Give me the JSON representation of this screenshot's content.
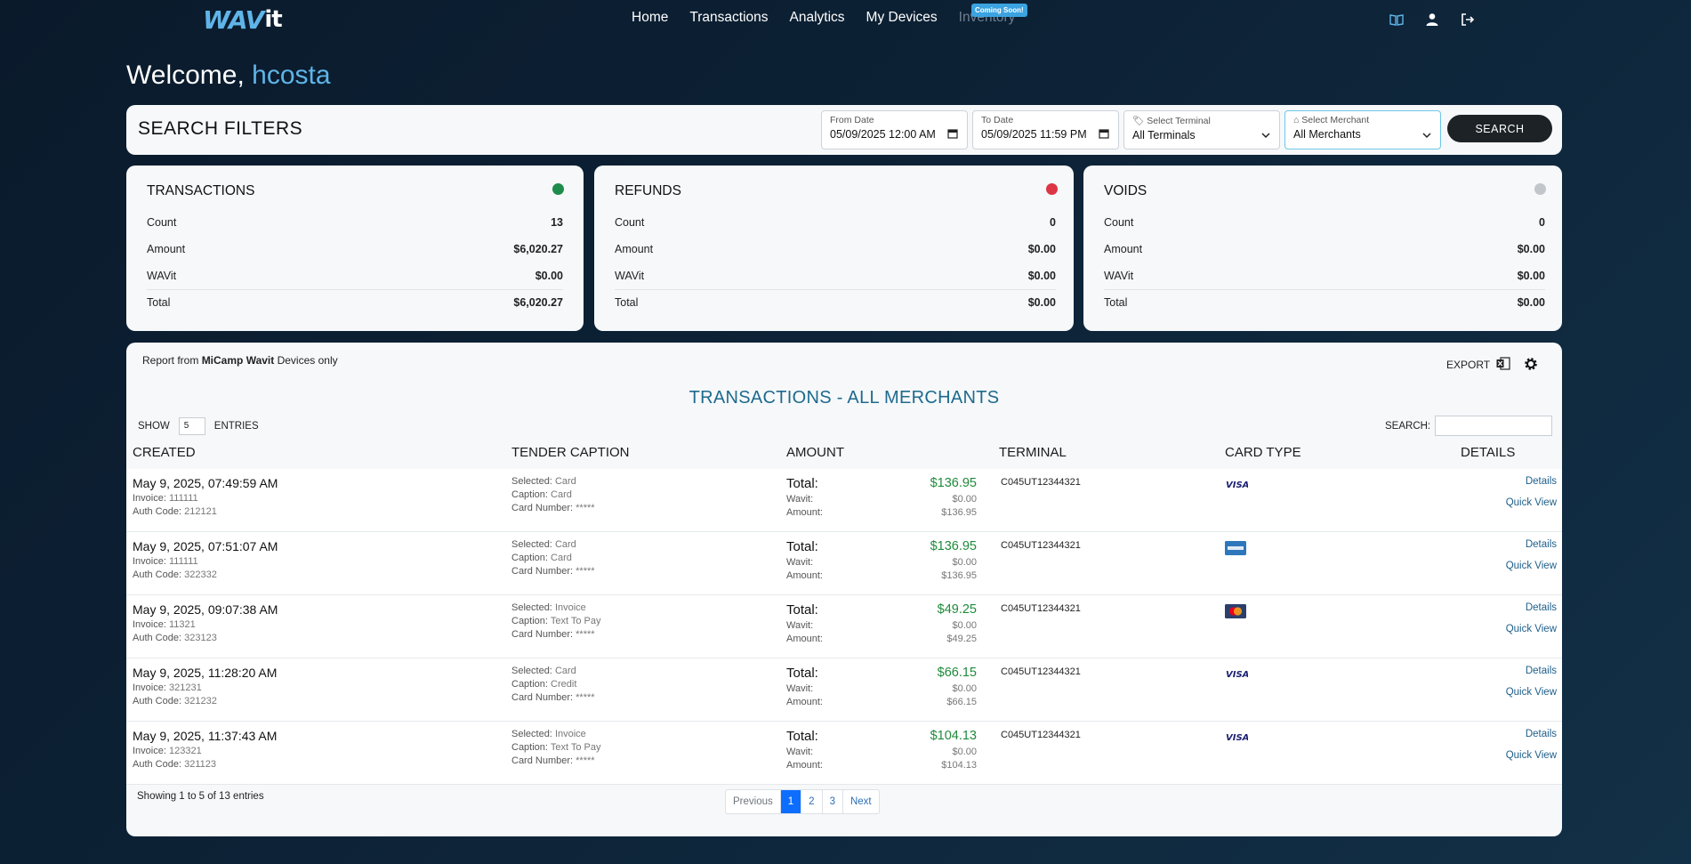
{
  "brand": {
    "logo_main": "WAV",
    "logo_tail": "it"
  },
  "nav": {
    "items": [
      "Home",
      "Transactions",
      "Analytics",
      "My Devices"
    ],
    "inventory": "Inventory",
    "coming_soon": "Coming Soon!"
  },
  "welcome": {
    "prefix": "Welcome,",
    "user": "hcosta"
  },
  "filters": {
    "title": "SEARCH FILTERS",
    "from_label": "From Date",
    "from_value": "05/09/2025 12:00 AM",
    "to_label": "To Date",
    "to_value": "05/09/2025 11:59 PM",
    "terminal_label": "Select Terminal",
    "terminal_value": "All Terminals",
    "merchant_label": "Select Merchant",
    "merchant_value": "All Merchants",
    "search_button": "SEARCH"
  },
  "summary": {
    "row_labels": {
      "count": "Count",
      "amount": "Amount",
      "wavit": "WAVit",
      "total": "Total"
    },
    "cards": [
      {
        "title": "TRANSACTIONS",
        "status_color": "#1e8c4a",
        "count": "13",
        "amount": "$6,020.27",
        "wavit": "$0.00",
        "total": "$6,020.27"
      },
      {
        "title": "REFUNDS",
        "status_color": "#dc3545",
        "count": "0",
        "amount": "$0.00",
        "wavit": "$0.00",
        "total": "$0.00"
      },
      {
        "title": "VOIDS",
        "status_color": "#c2c6ca",
        "count": "0",
        "amount": "$0.00",
        "wavit": "$0.00",
        "total": "$0.00"
      }
    ]
  },
  "report": {
    "note_prefix": "Report from ",
    "note_bold": "MiCamp Wavit",
    "note_suffix": " Devices only",
    "export_label": "EXPORT",
    "title": "TRANSACTIONS - ALL MERCHANTS",
    "show_label": "SHOW",
    "entries_value": "5",
    "entries_label": "ENTRIES",
    "search_label": "SEARCH:"
  },
  "table": {
    "headers": [
      "CREATED",
      "TENDER CAPTION",
      "AMOUNT",
      "TERMINAL",
      "CARD TYPE",
      "DETAILS"
    ],
    "labels": {
      "invoice": "Invoice:",
      "auth": "Auth Code:",
      "selected": "Selected:",
      "caption": "Caption:",
      "card_number": "Card Number:",
      "total": "Total:",
      "wavit": "Wavit:",
      "amount": "Amount:",
      "details": "Details",
      "quick_view": "Quick View"
    },
    "rows": [
      {
        "date": "May 9, 2025, 07:49:59 AM",
        "invoice": "111111",
        "auth": "212121",
        "selected": "Card",
        "caption": "Card",
        "card_number": "*****",
        "total": "$136.95",
        "wavit": "$0.00",
        "amount": "$136.95",
        "terminal": "C045UT12344321",
        "card_type": "visa"
      },
      {
        "date": "May 9, 2025, 07:51:07 AM",
        "invoice": "111111",
        "auth": "322332",
        "selected": "Card",
        "caption": "Card",
        "card_number": "*****",
        "total": "$136.95",
        "wavit": "$0.00",
        "amount": "$136.95",
        "terminal": "C045UT12344321",
        "card_type": "amex"
      },
      {
        "date": "May 9, 2025, 09:07:38 AM",
        "invoice": "11321",
        "auth": "323123",
        "selected": "Invoice",
        "caption": "Text To Pay",
        "card_number": "*****",
        "total": "$49.25",
        "wavit": "$0.00",
        "amount": "$49.25",
        "terminal": "C045UT12344321",
        "card_type": "mastercard"
      },
      {
        "date": "May 9, 2025, 11:28:20 AM",
        "invoice": "321231",
        "auth": "321232",
        "selected": "Card",
        "caption": "Credit",
        "card_number": "*****",
        "total": "$66.15",
        "wavit": "$0.00",
        "amount": "$66.15",
        "terminal": "C045UT12344321",
        "card_type": "visa"
      },
      {
        "date": "May 9, 2025, 11:37:43 AM",
        "invoice": "123321",
        "auth": "321123",
        "selected": "Invoice",
        "caption": "Text To Pay",
        "card_number": "*****",
        "total": "$104.13",
        "wavit": "$0.00",
        "amount": "$104.13",
        "terminal": "C045UT12344321",
        "card_type": "visa"
      }
    ]
  },
  "pagination": {
    "showing": "Showing 1 to 5 of 13 entries",
    "previous": "Previous",
    "pages": [
      "1",
      "2",
      "3"
    ],
    "next": "Next"
  },
  "colors": {
    "accent": "#5fb4e8",
    "title_blue": "#1e6a8e",
    "green": "#1f8a3b"
  }
}
